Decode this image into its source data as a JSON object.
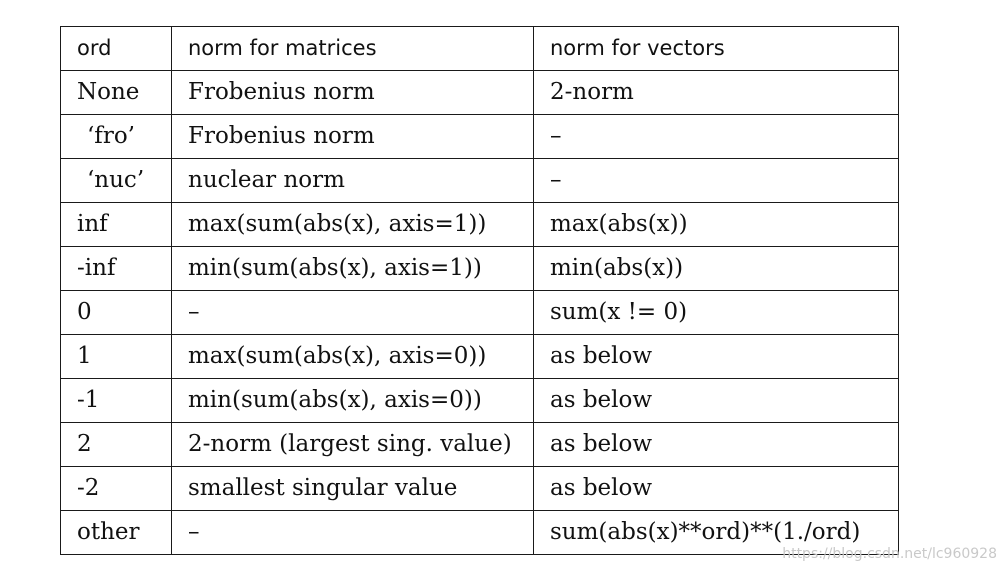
{
  "table": {
    "headers": [
      "ord",
      "norm for matrices",
      "norm for vectors"
    ],
    "rows": [
      [
        "None",
        "Frobenius norm",
        "2-norm"
      ],
      [
        "‘fro’",
        "Frobenius norm",
        "–"
      ],
      [
        "‘nuc’",
        "nuclear norm",
        "–"
      ],
      [
        "inf",
        "max(sum(abs(x), axis=1))",
        "max(abs(x))"
      ],
      [
        "-inf",
        "min(sum(abs(x), axis=1))",
        "min(abs(x))"
      ],
      [
        "0",
        "–",
        "sum(x != 0)"
      ],
      [
        "1",
        "max(sum(abs(x), axis=0))",
        "as below"
      ],
      [
        "-1",
        "min(sum(abs(x), axis=0))",
        "as below"
      ],
      [
        "2",
        "2-norm (largest sing. value)",
        "as below"
      ],
      [
        "-2",
        "smallest singular value",
        "as below"
      ],
      [
        "other",
        "–",
        "sum(abs(x)**ord)**(1./ord)"
      ]
    ]
  },
  "watermark": "https://blog.csdn.net/lc960928"
}
